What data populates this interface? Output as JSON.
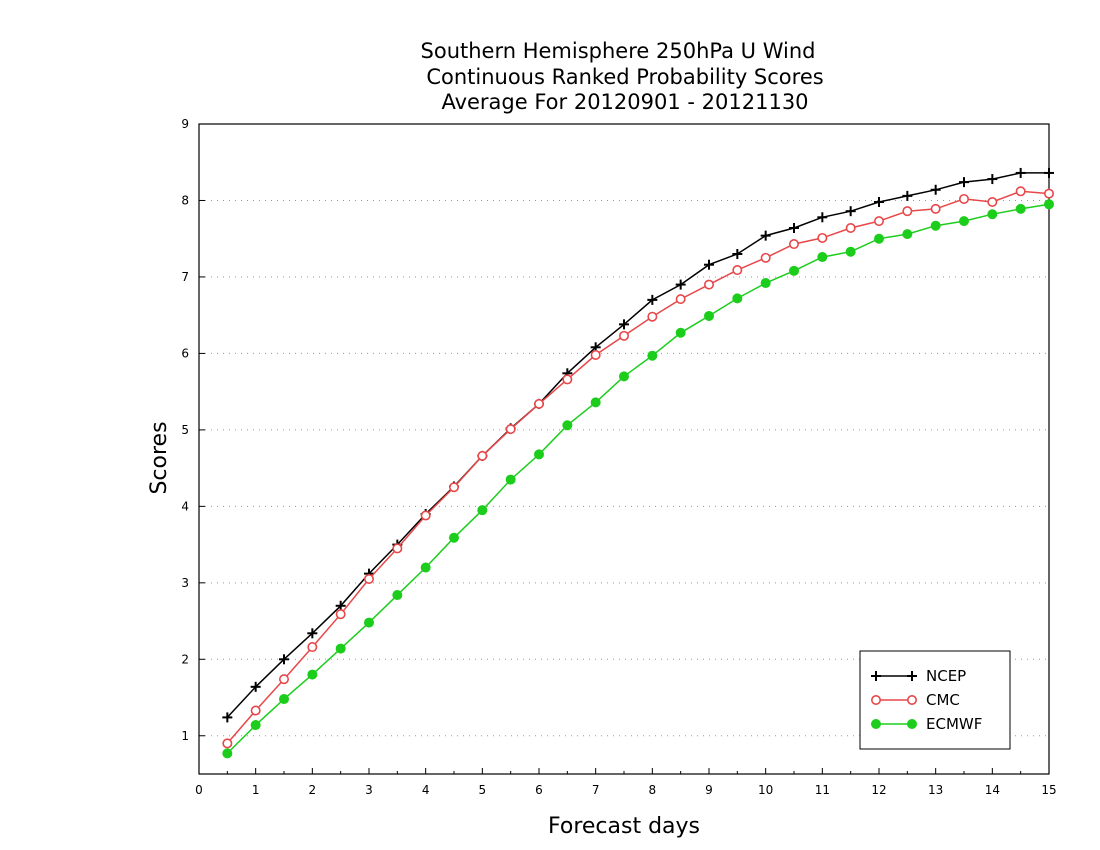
{
  "chart_data": {
    "type": "line",
    "title_lines": [
      "Southern Hemisphere 250hPa U Wind",
      "Continuous Ranked Probability Scores",
      "Average For 20120901 - 20121130"
    ],
    "xlabel": "Forecast days",
    "ylabel": "Scores",
    "xlim": [
      0,
      15
    ],
    "ylim": [
      0.5,
      9
    ],
    "xticks": [
      0,
      1,
      2,
      3,
      4,
      5,
      6,
      7,
      8,
      9,
      10,
      11,
      12,
      13,
      14,
      15
    ],
    "yticks": [
      1,
      2,
      3,
      4,
      5,
      6,
      7,
      8,
      9
    ],
    "grid": "horizontal dotted",
    "legend_position": "bottom-right",
    "x": [
      0.5,
      1,
      1.5,
      2,
      2.5,
      3,
      3.5,
      4,
      4.5,
      5,
      5.5,
      6,
      6.5,
      7,
      7.5,
      8,
      8.5,
      9,
      9.5,
      10,
      10.5,
      11,
      11.5,
      12,
      12.5,
      13,
      13.5,
      14,
      14.5,
      15
    ],
    "series": [
      {
        "name": "NCEP",
        "color": "#000000",
        "marker": "plus",
        "values": [
          1.24,
          1.64,
          2.0,
          2.34,
          2.7,
          3.12,
          3.5,
          3.9,
          4.26,
          4.66,
          5.02,
          5.34,
          5.74,
          6.08,
          6.38,
          6.7,
          6.9,
          7.16,
          7.3,
          7.54,
          7.64,
          7.78,
          7.86,
          7.98,
          8.06,
          8.14,
          8.24,
          8.28,
          8.36,
          8.36
        ]
      },
      {
        "name": "CMC",
        "color": "#e8474a",
        "marker": "open-circle",
        "values": [
          0.9,
          1.33,
          1.74,
          2.16,
          2.59,
          3.05,
          3.45,
          3.88,
          4.25,
          4.66,
          5.01,
          5.34,
          5.66,
          5.98,
          6.23,
          6.48,
          6.71,
          6.9,
          7.09,
          7.25,
          7.43,
          7.51,
          7.64,
          7.73,
          7.86,
          7.89,
          8.02,
          7.98,
          8.12,
          8.09
        ]
      },
      {
        "name": "ECMWF",
        "color": "#1ccd1c",
        "marker": "filled-circle",
        "values": [
          0.77,
          1.14,
          1.48,
          1.8,
          2.14,
          2.48,
          2.84,
          3.2,
          3.59,
          3.95,
          4.35,
          4.68,
          5.06,
          5.36,
          5.7,
          5.97,
          6.27,
          6.49,
          6.72,
          6.92,
          7.08,
          7.26,
          7.33,
          7.5,
          7.56,
          7.67,
          7.73,
          7.82,
          7.89,
          7.95
        ]
      }
    ]
  }
}
